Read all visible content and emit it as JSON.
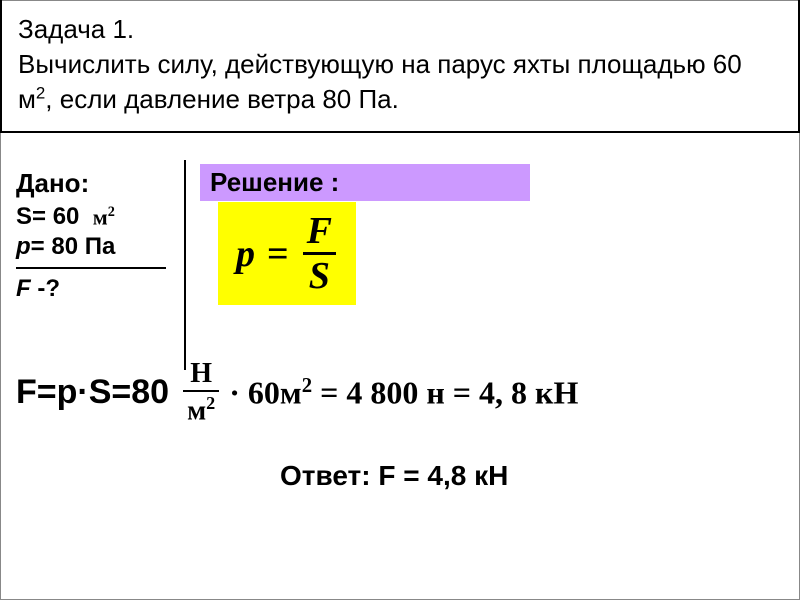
{
  "problem": {
    "title_line1": "Задача 1.",
    "title_line2": "Вычислить силу, действующую на парус яхты площадью 60 м",
    "title_sup": "2",
    "title_line2_end": ", если давление ветра 80 Па."
  },
  "given": {
    "label": "Дано:",
    "s_label": "S= 60",
    "s_unit": "м",
    "s_unit_sup": "2",
    "p_line": "= 80 Па",
    "p_var": "p",
    "f_var": "F",
    "f_line": " -?"
  },
  "solution": {
    "label": "Решение :",
    "formula_left": "p",
    "formula_eq": "=",
    "formula_num": "F",
    "formula_den": "S",
    "background_color": "#ffff00",
    "label_bg": "#cc99ff"
  },
  "calculation": {
    "prefix": "F=p·S=80",
    "frac_num": "Н",
    "frac_den_base": "м",
    "frac_den_sup": "2",
    "rest": "· 60м",
    "rest_sup": "2",
    "rest2": " = 4 800 н = 4, 8 кН"
  },
  "answer": {
    "text": "Ответ: F = 4,8 кН"
  },
  "styling": {
    "problem_border_color": "#000000",
    "text_color": "#000000",
    "main_fontsize": 26,
    "formula_fontsize": 38,
    "calc_fontsize": 32,
    "answer_fontsize": 28
  }
}
